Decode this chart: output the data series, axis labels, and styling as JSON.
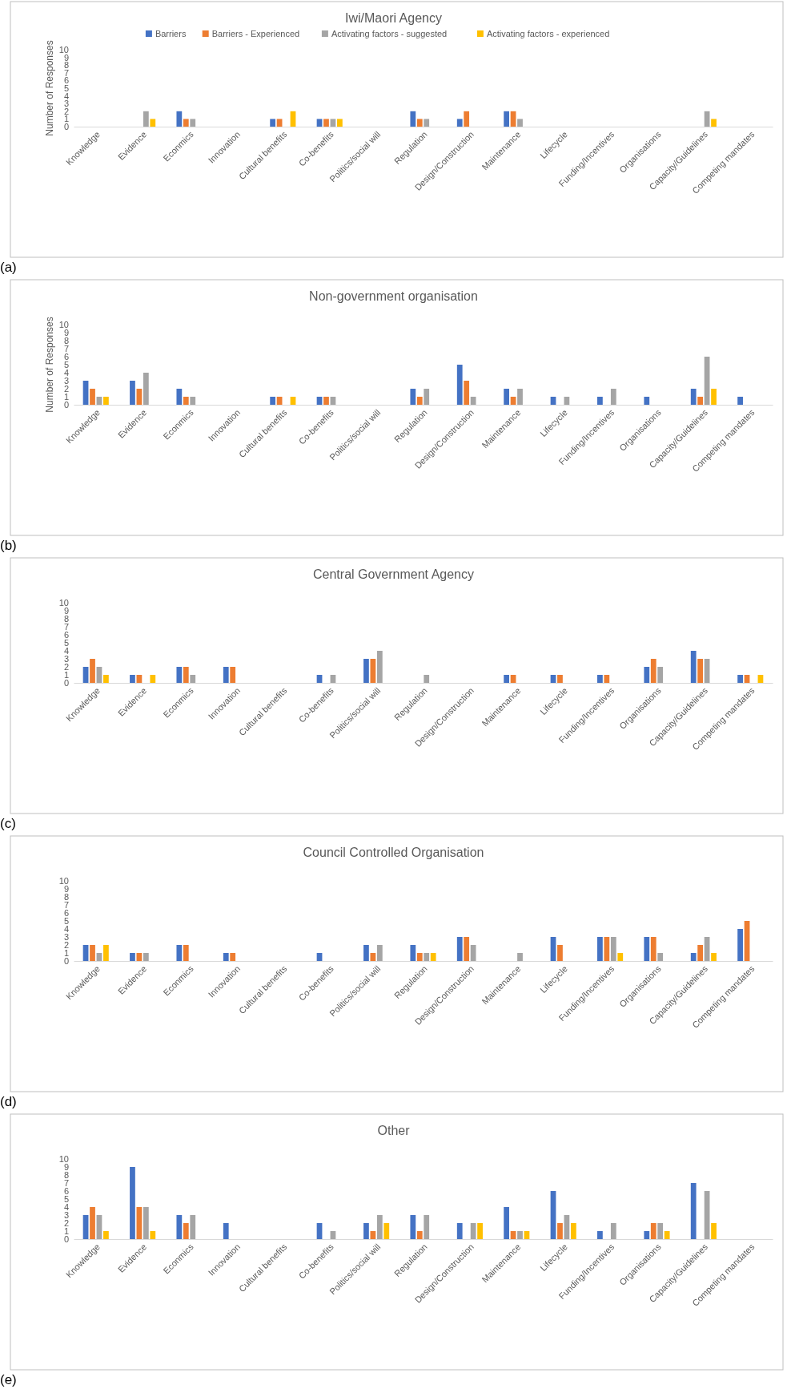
{
  "chart_data": [
    {
      "type": "bar",
      "title": "Iwi/Maori Agency",
      "ylabel": "Number of Responses",
      "annotations": [
        "(a)"
      ],
      "legend": "top",
      "grid": false,
      "ylim": [
        0,
        10
      ],
      "yticks": [
        0,
        1,
        2,
        3,
        4,
        5,
        6,
        7,
        8,
        9,
        10
      ],
      "categories": [
        "Knowledge",
        "Evidence",
        "Econmics",
        "Innovation",
        "Cultural benefits",
        "Co-benefits",
        "Politics/social will",
        "Regulation",
        "Design/Construction",
        "Maintenance",
        "Lifecycle",
        "Funding/Incentives",
        "Organisations",
        "Capacity/Guidelines",
        "Competing mandates"
      ],
      "series": [
        {
          "name": "Barriers",
          "color": "#4472c4",
          "values": [
            null,
            null,
            2,
            null,
            1,
            1,
            null,
            2,
            1,
            2,
            null,
            null,
            null,
            null,
            null
          ]
        },
        {
          "name": "Barriers - Experienced",
          "color": "#ed7d31",
          "values": [
            null,
            null,
            1,
            null,
            1,
            1,
            null,
            1,
            2,
            2,
            null,
            null,
            null,
            null,
            null
          ]
        },
        {
          "name": "Activating factors - suggested",
          "color": "#a5a5a5",
          "values": [
            null,
            2,
            1,
            null,
            null,
            1,
            null,
            1,
            null,
            1,
            null,
            null,
            null,
            2,
            null
          ]
        },
        {
          "name": "Activating factors - experienced",
          "color": "#ffc000",
          "values": [
            null,
            1,
            null,
            null,
            2,
            1,
            null,
            null,
            null,
            null,
            null,
            null,
            null,
            1,
            null
          ]
        }
      ]
    },
    {
      "type": "bar",
      "title": "Non-government organisation",
      "ylabel": "Number of Responses",
      "annotations": [
        "(b)"
      ],
      "grid": false,
      "ylim": [
        0,
        10
      ],
      "yticks": [
        0,
        1,
        2,
        3,
        4,
        5,
        6,
        7,
        8,
        9,
        10
      ],
      "categories": [
        "Knowledge",
        "Evidence",
        "Econmics",
        "Innovation",
        "Cultural benefits",
        "Co-benefits",
        "Politics/social will",
        "Regulation",
        "Design/Construction",
        "Maintenance",
        "Lifecycle",
        "Funding/Incentives",
        "Organisations",
        "Capacity/Guidelines",
        "Competing mandates"
      ],
      "series": [
        {
          "color": "#4472c4",
          "values": [
            3,
            3,
            2,
            null,
            1,
            1,
            null,
            2,
            5,
            2,
            1,
            1,
            1,
            2,
            1
          ]
        },
        {
          "color": "#ed7d31",
          "values": [
            2,
            2,
            1,
            null,
            1,
            1,
            null,
            1,
            3,
            1,
            null,
            null,
            null,
            1,
            null
          ]
        },
        {
          "color": "#a5a5a5",
          "values": [
            1,
            4,
            1,
            null,
            null,
            1,
            null,
            2,
            1,
            2,
            1,
            2,
            null,
            6,
            null
          ]
        },
        {
          "color": "#ffc000",
          "values": [
            1,
            null,
            null,
            null,
            1,
            null,
            null,
            null,
            null,
            null,
            null,
            null,
            null,
            2,
            null
          ]
        }
      ]
    },
    {
      "type": "bar",
      "title": "Central Government Agency",
      "annotations": [
        "(c)"
      ],
      "grid": false,
      "ylim": [
        0,
        10
      ],
      "yticks": [
        0,
        1,
        2,
        3,
        4,
        5,
        6,
        7,
        8,
        9,
        10
      ],
      "categories": [
        "Knowledge",
        "Evidence",
        "Econmics",
        "Innovation",
        "Cultural benefits",
        "Co-benefits",
        "Politics/social will",
        "Regulation",
        "Design/Construction",
        "Maintenance",
        "Lifecycle",
        "Funding/Incentives",
        "Organisations",
        "Capacity/Guidelines",
        "Competing mandates"
      ],
      "series": [
        {
          "color": "#4472c4",
          "values": [
            2,
            1,
            2,
            2,
            null,
            1,
            3,
            null,
            null,
            1,
            1,
            1,
            2,
            4,
            1
          ]
        },
        {
          "color": "#ed7d31",
          "values": [
            3,
            1,
            2,
            2,
            null,
            null,
            3,
            null,
            null,
            1,
            1,
            1,
            3,
            3,
            1
          ]
        },
        {
          "color": "#a5a5a5",
          "values": [
            2,
            null,
            1,
            null,
            null,
            1,
            4,
            1,
            null,
            null,
            null,
            null,
            2,
            3,
            null
          ]
        },
        {
          "color": "#ffc000",
          "values": [
            1,
            1,
            null,
            null,
            null,
            null,
            null,
            null,
            null,
            null,
            null,
            null,
            null,
            null,
            1
          ]
        }
      ]
    },
    {
      "type": "bar",
      "title": "Council Controlled Organisation",
      "annotations": [
        "(d)"
      ],
      "grid": false,
      "ylim": [
        0,
        10
      ],
      "yticks": [
        0,
        1,
        2,
        3,
        4,
        5,
        6,
        7,
        8,
        9,
        10
      ],
      "categories": [
        "Knowledge",
        "Evidence",
        "Econmics",
        "Innovation",
        "Cultural benefits",
        "Co-benefits",
        "Politics/social will",
        "Regulation",
        "Design/Construction",
        "Maintenance",
        "Lifecycle",
        "Funding/Incentives",
        "Organisations",
        "Capacity/Guidelines",
        "Competing mandates"
      ],
      "series": [
        {
          "color": "#4472c4",
          "values": [
            2,
            1,
            2,
            1,
            null,
            1,
            2,
            2,
            3,
            null,
            3,
            3,
            3,
            1,
            4
          ]
        },
        {
          "color": "#ed7d31",
          "values": [
            2,
            1,
            2,
            1,
            null,
            null,
            1,
            1,
            3,
            null,
            2,
            3,
            3,
            2,
            5
          ]
        },
        {
          "color": "#a5a5a5",
          "values": [
            1,
            1,
            null,
            null,
            null,
            null,
            2,
            1,
            2,
            1,
            null,
            3,
            1,
            3,
            null
          ]
        },
        {
          "color": "#ffc000",
          "values": [
            2,
            null,
            null,
            null,
            null,
            null,
            null,
            1,
            null,
            null,
            null,
            1,
            null,
            1,
            null
          ]
        }
      ]
    },
    {
      "type": "bar",
      "title": "Other",
      "annotations": [
        "(e)"
      ],
      "grid": false,
      "ylim": [
        0,
        10
      ],
      "yticks": [
        0,
        1,
        2,
        3,
        4,
        5,
        6,
        7,
        8,
        9,
        10
      ],
      "categories": [
        "Knowledge",
        "Evidence",
        "Econmics",
        "Innovation",
        "Cultural benefits",
        "Co-benefits",
        "Politics/social will",
        "Regulation",
        "Design/Construction",
        "Maintenance",
        "Lifecycle",
        "Funding/Incentives",
        "Organisations",
        "Capacity/Guidelines",
        "Competing mandates"
      ],
      "series": [
        {
          "color": "#4472c4",
          "values": [
            3,
            9,
            3,
            2,
            null,
            2,
            2,
            3,
            2,
            4,
            6,
            1,
            1,
            7,
            null
          ]
        },
        {
          "color": "#ed7d31",
          "values": [
            4,
            4,
            2,
            null,
            null,
            null,
            1,
            1,
            null,
            1,
            2,
            null,
            2,
            null,
            null
          ]
        },
        {
          "color": "#a5a5a5",
          "values": [
            3,
            4,
            3,
            null,
            null,
            1,
            3,
            3,
            2,
            1,
            3,
            2,
            2,
            6,
            null
          ]
        },
        {
          "color": "#ffc000",
          "values": [
            1,
            1,
            null,
            null,
            null,
            null,
            2,
            null,
            2,
            1,
            2,
            null,
            1,
            2,
            null
          ]
        }
      ]
    }
  ]
}
